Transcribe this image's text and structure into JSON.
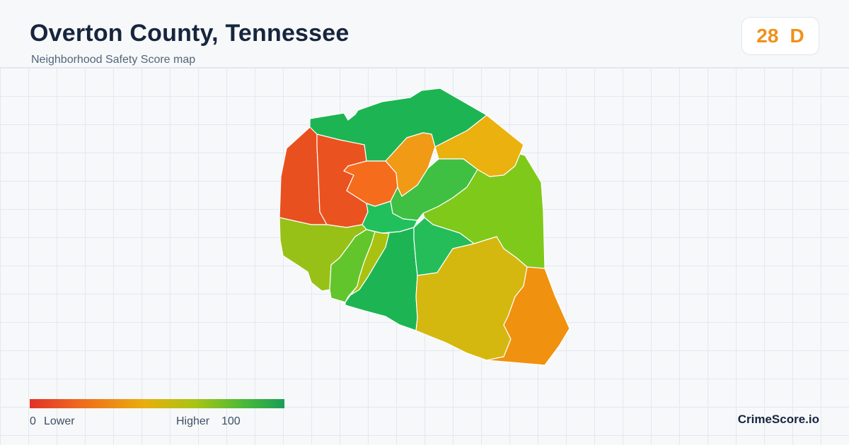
{
  "header": {
    "title": "Overton County, Tennessee",
    "subtitle": "Neighborhood Safety Score map"
  },
  "score_badge": {
    "score": "28",
    "grade": "D",
    "color": "#f0901a"
  },
  "map": {
    "regions": [
      {
        "name": "region-north",
        "color": "#1db553"
      },
      {
        "name": "region-northwest-west",
        "color": "#e9501f"
      },
      {
        "name": "region-northwest-inner",
        "color": "#ea531f"
      },
      {
        "name": "region-center-north-orange",
        "color": "#f56c1c"
      },
      {
        "name": "region-north-central-orange",
        "color": "#f19a16"
      },
      {
        "name": "region-northeast",
        "color": "#ebb10e"
      },
      {
        "name": "region-central-green",
        "color": "#3fc043"
      },
      {
        "name": "region-east",
        "color": "#7fc91b"
      },
      {
        "name": "region-center",
        "color": "#22c05c"
      },
      {
        "name": "region-west",
        "color": "#98c118"
      },
      {
        "name": "region-southwest-lime",
        "color": "#63c52c"
      },
      {
        "name": "region-southwest-strip",
        "color": "#a9c211"
      },
      {
        "name": "region-south-central",
        "color": "#1db553"
      },
      {
        "name": "region-central-east",
        "color": "#24bd5a"
      },
      {
        "name": "region-southeast",
        "color": "#d5b80f"
      },
      {
        "name": "region-far-southeast",
        "color": "#f0910f"
      }
    ]
  },
  "legend": {
    "min": "0",
    "min_label": "Lower",
    "max_label": "Higher",
    "max": "100",
    "colors": [
      "#e0332a",
      "#ef6b1e",
      "#e9ad0e",
      "#a7c515",
      "#46b83a",
      "#1a9e55"
    ]
  },
  "footer": {
    "brand": "CrimeScore.io"
  }
}
